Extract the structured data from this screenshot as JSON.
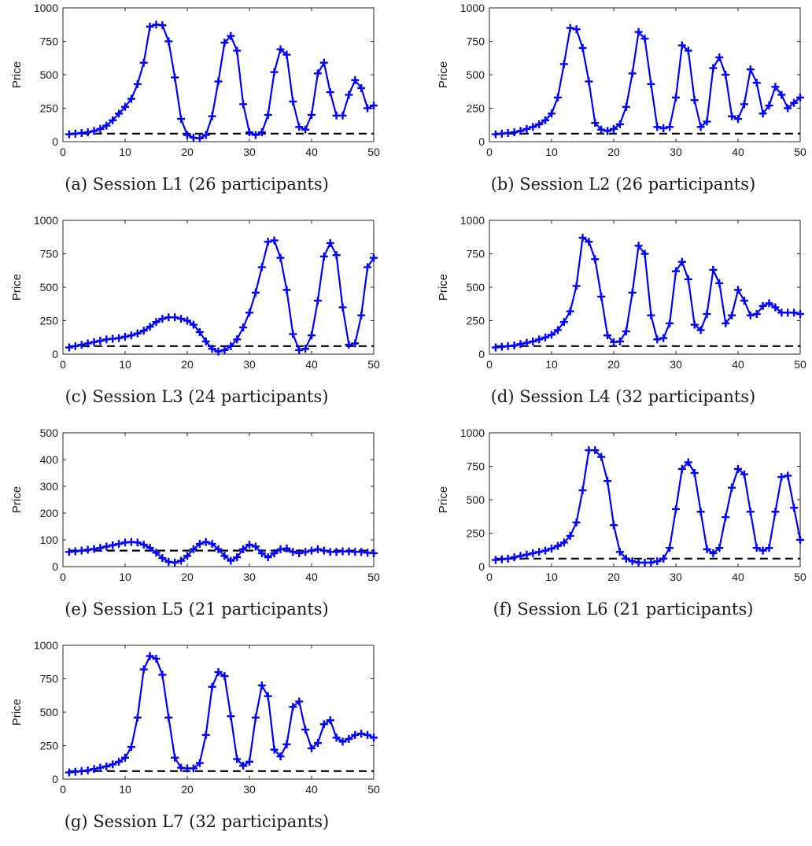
{
  "chart_data": [
    {
      "type": "line",
      "caption": "(a) Session L1 (26 participants)",
      "ylabel": "Price",
      "xlim": [
        0,
        50
      ],
      "ylim": [
        0,
        1000
      ],
      "xticks": [
        0,
        10,
        20,
        30,
        40,
        50
      ],
      "yticks": [
        0,
        250,
        500,
        750,
        1000
      ],
      "reference_line": 60,
      "x": [
        1,
        2,
        3,
        4,
        5,
        6,
        7,
        8,
        9,
        10,
        11,
        12,
        13,
        14,
        15,
        16,
        17,
        18,
        19,
        20,
        21,
        22,
        23,
        24,
        25,
        26,
        27,
        28,
        29,
        30,
        31,
        32,
        33,
        34,
        35,
        36,
        37,
        38,
        39,
        40,
        41,
        42,
        43,
        44,
        45,
        46,
        47,
        48,
        49,
        50
      ],
      "series": [
        {
          "values": [
            55,
            60,
            65,
            70,
            80,
            95,
            120,
            160,
            210,
            260,
            320,
            430,
            590,
            860,
            875,
            870,
            750,
            480,
            170,
            50,
            30,
            25,
            50,
            190,
            450,
            740,
            790,
            680,
            280,
            70,
            50,
            70,
            200,
            520,
            690,
            650,
            300,
            110,
            90,
            200,
            510,
            590,
            370,
            195,
            195,
            350,
            460,
            400,
            250,
            270
          ]
        }
      ],
      "color": "#0000ff"
    },
    {
      "type": "line",
      "caption": "(b) Session L2 (26 participants)",
      "ylabel": "Price",
      "xlim": [
        0,
        50
      ],
      "ylim": [
        0,
        1000
      ],
      "xticks": [
        0,
        10,
        20,
        30,
        40,
        50
      ],
      "yticks": [
        0,
        250,
        500,
        750,
        1000
      ],
      "reference_line": 60,
      "x": [
        1,
        2,
        3,
        4,
        5,
        6,
        7,
        8,
        9,
        10,
        11,
        12,
        13,
        14,
        15,
        16,
        17,
        18,
        19,
        20,
        21,
        22,
        23,
        24,
        25,
        26,
        27,
        28,
        29,
        30,
        31,
        32,
        33,
        34,
        35,
        36,
        37,
        38,
        39,
        40,
        41,
        42,
        43,
        44,
        45,
        46,
        47,
        48,
        49,
        50
      ],
      "series": [
        {
          "values": [
            55,
            60,
            65,
            70,
            80,
            95,
            110,
            130,
            160,
            210,
            330,
            580,
            850,
            840,
            700,
            450,
            140,
            90,
            80,
            95,
            130,
            260,
            510,
            820,
            770,
            430,
            110,
            100,
            110,
            330,
            720,
            680,
            310,
            110,
            150,
            550,
            630,
            500,
            190,
            170,
            280,
            540,
            440,
            210,
            270,
            410,
            350,
            250,
            290,
            330
          ]
        }
      ],
      "color": "#0000ff"
    },
    {
      "type": "line",
      "caption": "(c) Session L3 (24 participants)",
      "ylabel": "Price",
      "xlim": [
        0,
        50
      ],
      "ylim": [
        0,
        1000
      ],
      "xticks": [
        0,
        10,
        20,
        30,
        40,
        50
      ],
      "yticks": [
        0,
        250,
        500,
        750,
        1000
      ],
      "reference_line": 60,
      "x": [
        1,
        2,
        3,
        4,
        5,
        6,
        7,
        8,
        9,
        10,
        11,
        12,
        13,
        14,
        15,
        16,
        17,
        18,
        19,
        20,
        21,
        22,
        23,
        24,
        25,
        26,
        27,
        28,
        29,
        30,
        31,
        32,
        33,
        34,
        35,
        36,
        37,
        38,
        39,
        40,
        41,
        42,
        43,
        44,
        45,
        46,
        47,
        48,
        49,
        50
      ],
      "series": [
        {
          "values": [
            50,
            60,
            70,
            80,
            90,
            100,
            110,
            115,
            120,
            130,
            140,
            155,
            175,
            205,
            240,
            265,
            275,
            275,
            265,
            250,
            220,
            165,
            95,
            40,
            20,
            30,
            60,
            110,
            200,
            310,
            460,
            650,
            840,
            850,
            720,
            480,
            150,
            30,
            40,
            140,
            400,
            730,
            830,
            740,
            350,
            70,
            80,
            290,
            650,
            720
          ]
        }
      ],
      "color": "#0000ff"
    },
    {
      "type": "line",
      "caption": "(d) Session L4 (32 participants)",
      "ylabel": "Price",
      "xlim": [
        0,
        50
      ],
      "ylim": [
        0,
        1000
      ],
      "xticks": [
        0,
        10,
        20,
        30,
        40,
        50
      ],
      "yticks": [
        0,
        250,
        500,
        750,
        1000
      ],
      "reference_line": 60,
      "x": [
        1,
        2,
        3,
        4,
        5,
        6,
        7,
        8,
        9,
        10,
        11,
        12,
        13,
        14,
        15,
        16,
        17,
        18,
        19,
        20,
        21,
        22,
        23,
        24,
        25,
        26,
        27,
        28,
        29,
        30,
        31,
        32,
        33,
        34,
        35,
        36,
        37,
        38,
        39,
        40,
        41,
        42,
        43,
        44,
        45,
        46,
        47,
        48,
        49,
        50
      ],
      "series": [
        {
          "values": [
            50,
            55,
            60,
            65,
            75,
            85,
            95,
            110,
            125,
            145,
            180,
            240,
            320,
            510,
            870,
            840,
            710,
            430,
            140,
            90,
            95,
            170,
            460,
            810,
            750,
            290,
            110,
            120,
            230,
            620,
            690,
            560,
            220,
            180,
            300,
            630,
            530,
            230,
            290,
            480,
            400,
            290,
            300,
            360,
            380,
            350,
            310,
            310,
            310,
            300
          ]
        }
      ],
      "color": "#0000ff"
    },
    {
      "type": "line",
      "caption": "(e) Session L5 (21 participants)",
      "ylabel": "Price",
      "xlim": [
        0,
        50
      ],
      "ylim": [
        0,
        500
      ],
      "xticks": [
        0,
        10,
        20,
        30,
        40,
        50
      ],
      "yticks": [
        0,
        100,
        200,
        300,
        400,
        500
      ],
      "reference_line": 60,
      "x": [
        1,
        2,
        3,
        4,
        5,
        6,
        7,
        8,
        9,
        10,
        11,
        12,
        13,
        14,
        15,
        16,
        17,
        18,
        19,
        20,
        21,
        22,
        23,
        24,
        25,
        26,
        27,
        28,
        29,
        30,
        31,
        32,
        33,
        34,
        35,
        36,
        37,
        38,
        39,
        40,
        41,
        42,
        43,
        44,
        45,
        46,
        47,
        48,
        49,
        50
      ],
      "series": [
        {
          "values": [
            55,
            57,
            60,
            63,
            66,
            70,
            75,
            80,
            85,
            90,
            92,
            90,
            82,
            70,
            52,
            32,
            18,
            15,
            22,
            40,
            65,
            85,
            92,
            85,
            65,
            40,
            22,
            35,
            65,
            82,
            75,
            50,
            35,
            50,
            65,
            68,
            55,
            50,
            55,
            60,
            65,
            60,
            55,
            55,
            57,
            57,
            55,
            55,
            52,
            50
          ]
        }
      ],
      "color": "#0000ff"
    },
    {
      "type": "line",
      "caption": "(f) Session L6 (21 participants)",
      "ylabel": "Price",
      "xlim": [
        0,
        50
      ],
      "ylim": [
        0,
        1000
      ],
      "xticks": [
        0,
        10,
        20,
        30,
        40,
        50
      ],
      "yticks": [
        0,
        250,
        500,
        750,
        1000
      ],
      "reference_line": 60,
      "x": [
        1,
        2,
        3,
        4,
        5,
        6,
        7,
        8,
        9,
        10,
        11,
        12,
        13,
        14,
        15,
        16,
        17,
        18,
        19,
        20,
        21,
        22,
        23,
        24,
        25,
        26,
        27,
        28,
        29,
        30,
        31,
        32,
        33,
        34,
        35,
        36,
        37,
        38,
        39,
        40,
        41,
        42,
        43,
        44,
        45,
        46,
        47,
        48,
        49,
        50
      ],
      "series": [
        {
          "values": [
            50,
            55,
            60,
            70,
            80,
            90,
            100,
            110,
            120,
            135,
            155,
            180,
            230,
            330,
            570,
            870,
            870,
            820,
            640,
            310,
            110,
            60,
            40,
            30,
            30,
            30,
            40,
            60,
            140,
            430,
            730,
            780,
            700,
            410,
            130,
            100,
            140,
            370,
            590,
            730,
            690,
            410,
            140,
            120,
            140,
            410,
            670,
            680,
            440,
            200
          ]
        }
      ],
      "color": "#0000ff"
    },
    {
      "type": "line",
      "caption": "(g) Session L7 (32 participants)",
      "ylabel": "Price",
      "xlim": [
        0,
        50
      ],
      "ylim": [
        0,
        1000
      ],
      "xticks": [
        0,
        10,
        20,
        30,
        40,
        50
      ],
      "yticks": [
        0,
        250,
        500,
        750,
        1000
      ],
      "reference_line": 60,
      "x": [
        1,
        2,
        3,
        4,
        5,
        6,
        7,
        8,
        9,
        10,
        11,
        12,
        13,
        14,
        15,
        16,
        17,
        18,
        19,
        20,
        21,
        22,
        23,
        24,
        25,
        26,
        27,
        28,
        29,
        30,
        31,
        32,
        33,
        34,
        35,
        36,
        37,
        38,
        39,
        40,
        41,
        42,
        43,
        44,
        45,
        46,
        47,
        48,
        49,
        50
      ],
      "series": [
        {
          "values": [
            50,
            55,
            60,
            65,
            75,
            85,
            95,
            110,
            130,
            160,
            240,
            460,
            820,
            920,
            900,
            780,
            460,
            160,
            85,
            80,
            80,
            120,
            330,
            690,
            800,
            770,
            470,
            150,
            100,
            130,
            460,
            700,
            620,
            220,
            170,
            260,
            540,
            580,
            370,
            230,
            270,
            410,
            440,
            310,
            280,
            300,
            330,
            340,
            330,
            310
          ]
        }
      ],
      "color": "#0000ff"
    }
  ]
}
